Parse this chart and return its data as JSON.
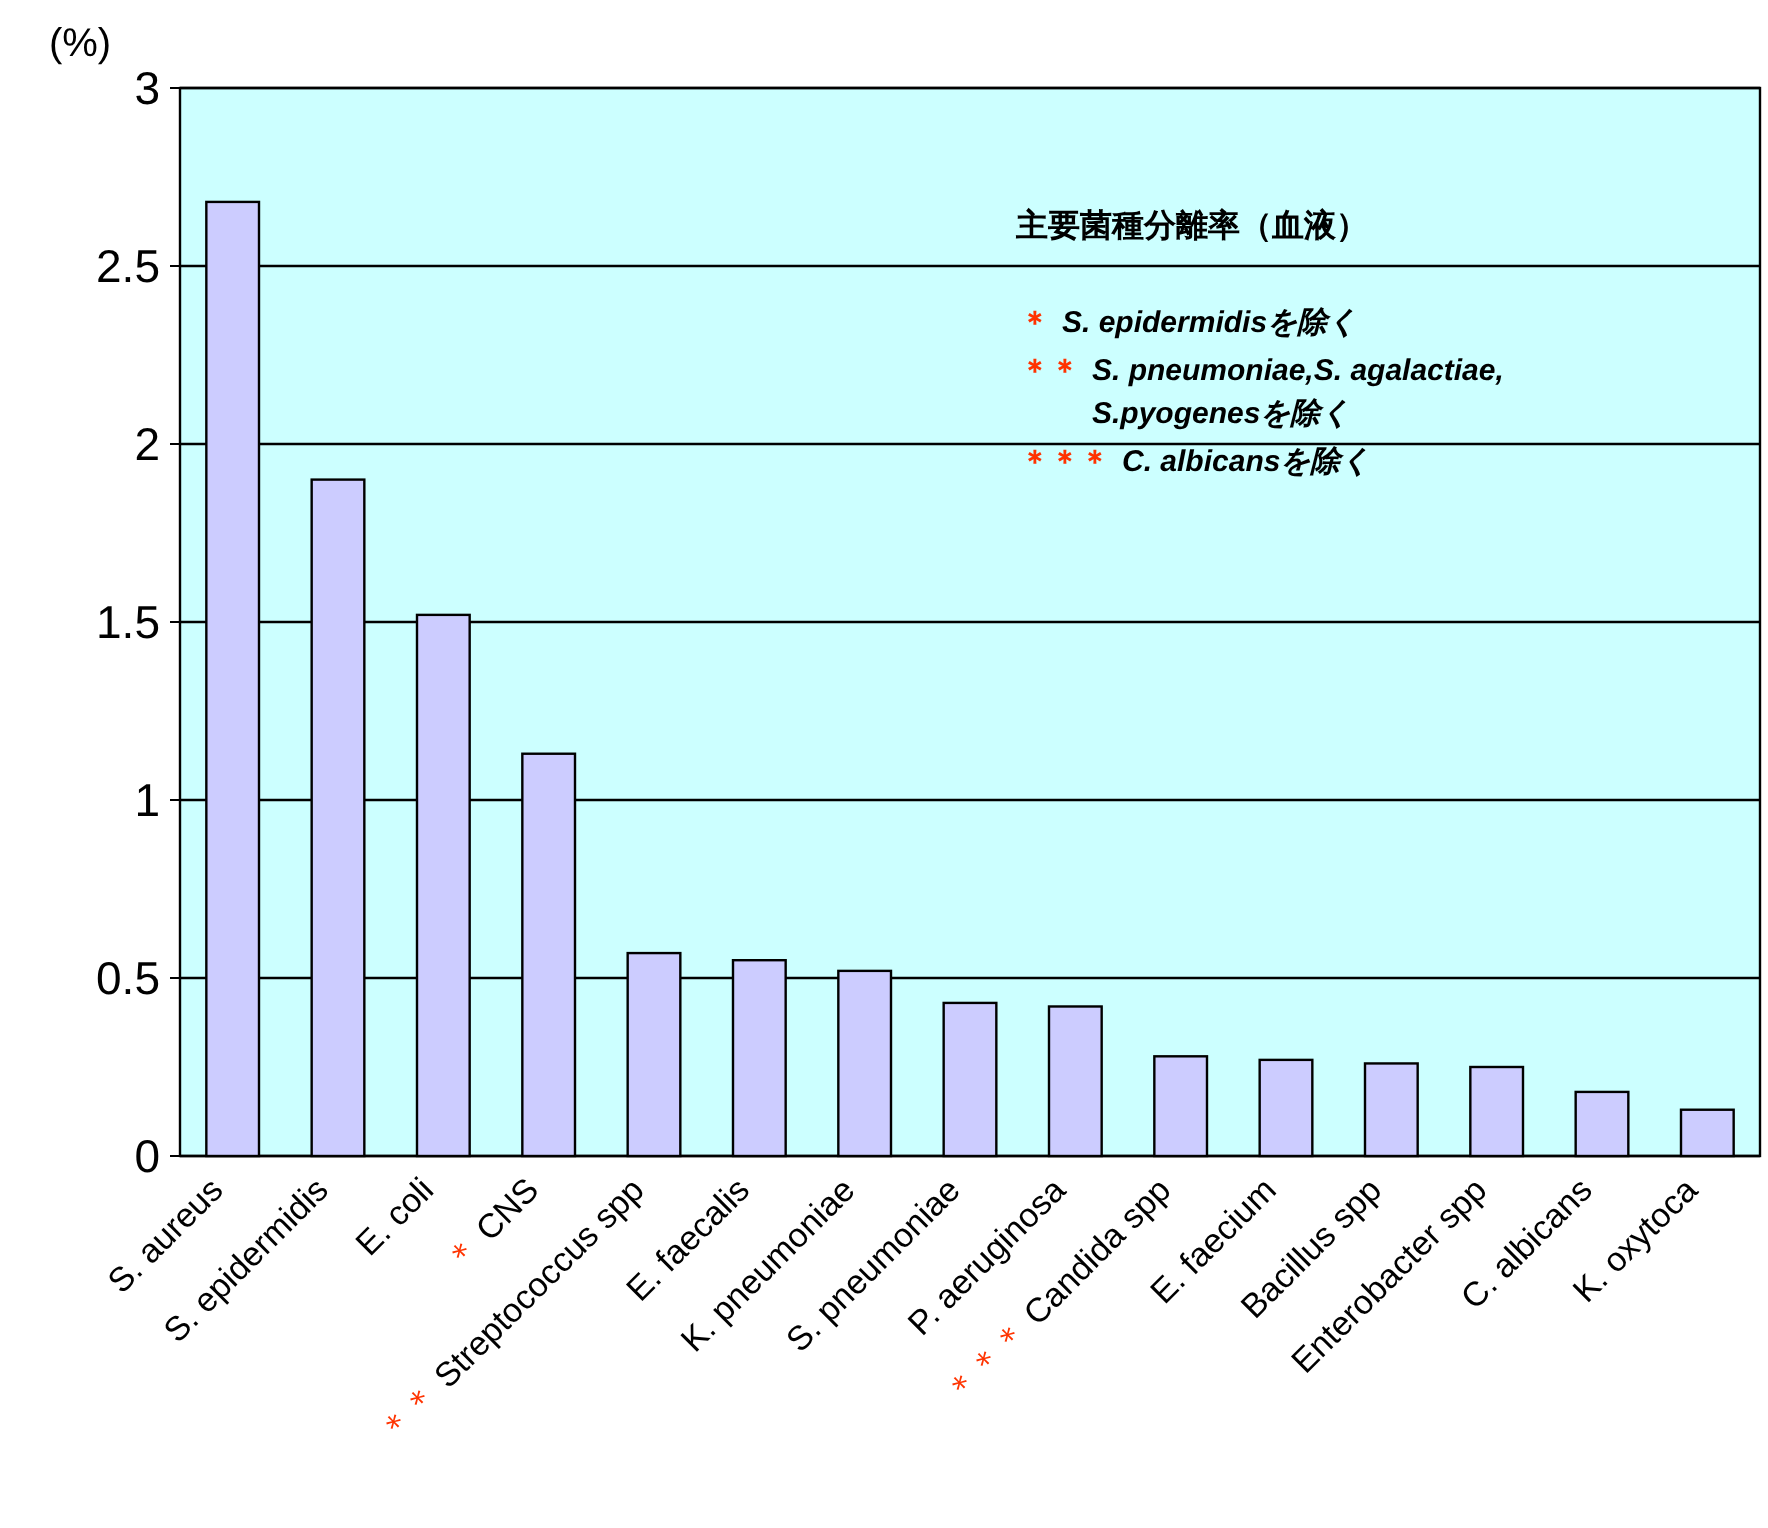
{
  "chart_data": {
    "type": "bar",
    "title": "主要菌種分離率（血液）",
    "ylabel": "(%)",
    "categories": [
      "S. aureus",
      "S. epidermidis",
      "E. coli",
      "＊ CNS",
      "＊＊ Streptococcus spp",
      "E. faecalis",
      "K. pneumoniae",
      "S. pneumoniae",
      "P. aeruginosa",
      "＊＊＊ Candida spp",
      "E. faecium",
      "Bacillus spp",
      "Enterobacter spp",
      "C. albicans",
      "K. oxytoca"
    ],
    "values": [
      2.68,
      1.9,
      1.52,
      1.13,
      0.57,
      0.55,
      0.52,
      0.43,
      0.42,
      0.28,
      0.27,
      0.26,
      0.25,
      0.18,
      0.13
    ],
    "color": "#ccccff",
    "ylim": [
      0,
      3
    ],
    "yticks": [
      0,
      0.5,
      1,
      1.5,
      2,
      2.5,
      3
    ],
    "grid": "y",
    "annotations": [
      "＊ S. epidermidisを除く",
      "＊＊ S. pneumoniae,S. agalactiae, S.pyogenesを除く",
      "＊＊＊ C. albicansを除く"
    ]
  }
}
